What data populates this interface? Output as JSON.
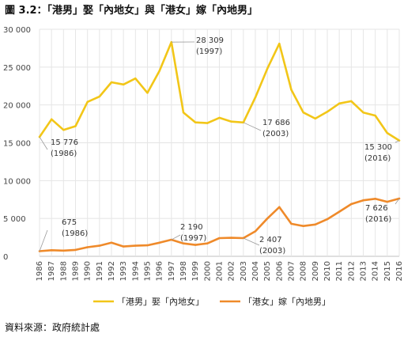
{
  "title": "圖 3.2：「港男」娶「內地女」與「港女」嫁「內地男」",
  "source": "資料來源：政府統計處",
  "chart_data": {
    "type": "line",
    "x": [
      "1986",
      "1987",
      "1988",
      "1989",
      "1990",
      "1991",
      "1992",
      "1993",
      "1994",
      "1995",
      "1996",
      "1997",
      "1998",
      "1999",
      "2000",
      "2001",
      "2002",
      "2003",
      "2004",
      "2005",
      "2006",
      "2007",
      "2008",
      "2009",
      "2010",
      "2011",
      "2012",
      "2013",
      "2014",
      "2015",
      "2016"
    ],
    "ylim": [
      0,
      30000
    ],
    "yticks": [
      0,
      5000,
      10000,
      15000,
      20000,
      25000,
      30000
    ],
    "ytick_labels": [
      "0",
      "5 000",
      "10 000",
      "15 000",
      "20 000",
      "25 000",
      "30 000"
    ],
    "grid": true,
    "legend_position": "bottom",
    "series": [
      {
        "name": "「港男」娶「內地女」",
        "color": "#f2c618",
        "values": [
          15776,
          18100,
          16700,
          17200,
          20400,
          21100,
          23000,
          22700,
          23500,
          21600,
          24500,
          28309,
          19000,
          17700,
          17600,
          18300,
          17800,
          17686,
          21000,
          24800,
          28100,
          22000,
          19000,
          18200,
          19100,
          20200,
          20500,
          19000,
          18600,
          16300,
          15300
        ]
      },
      {
        "name": "「港女」嫁「內地男」",
        "color": "#ef8a2a",
        "values": [
          675,
          800,
          750,
          850,
          1200,
          1400,
          1800,
          1300,
          1400,
          1450,
          1800,
          2190,
          1700,
          1500,
          1700,
          2400,
          2450,
          2407,
          3300,
          5000,
          6500,
          4300,
          4000,
          4200,
          4900,
          5900,
          6900,
          7400,
          7600,
          7200,
          7626
        ]
      }
    ],
    "annotations": [
      {
        "series": 0,
        "index": 11,
        "lines": [
          "28 309",
          "(1997)"
        ]
      },
      {
        "series": 0,
        "index": 17,
        "lines": [
          "17 686",
          "(2003)"
        ]
      },
      {
        "series": 0,
        "index": 0,
        "lines": [
          "15 776",
          "(1986)"
        ]
      },
      {
        "series": 0,
        "index": 30,
        "lines": [
          "15 300",
          "(2016)"
        ]
      },
      {
        "series": 1,
        "index": 0,
        "lines": [
          "675",
          "(1986)"
        ]
      },
      {
        "series": 1,
        "index": 11,
        "lines": [
          "2 190",
          "(1997)"
        ]
      },
      {
        "series": 1,
        "index": 17,
        "lines": [
          "2 407",
          "(2003)"
        ]
      },
      {
        "series": 1,
        "index": 30,
        "lines": [
          "7 626",
          "(2016)"
        ]
      }
    ]
  }
}
